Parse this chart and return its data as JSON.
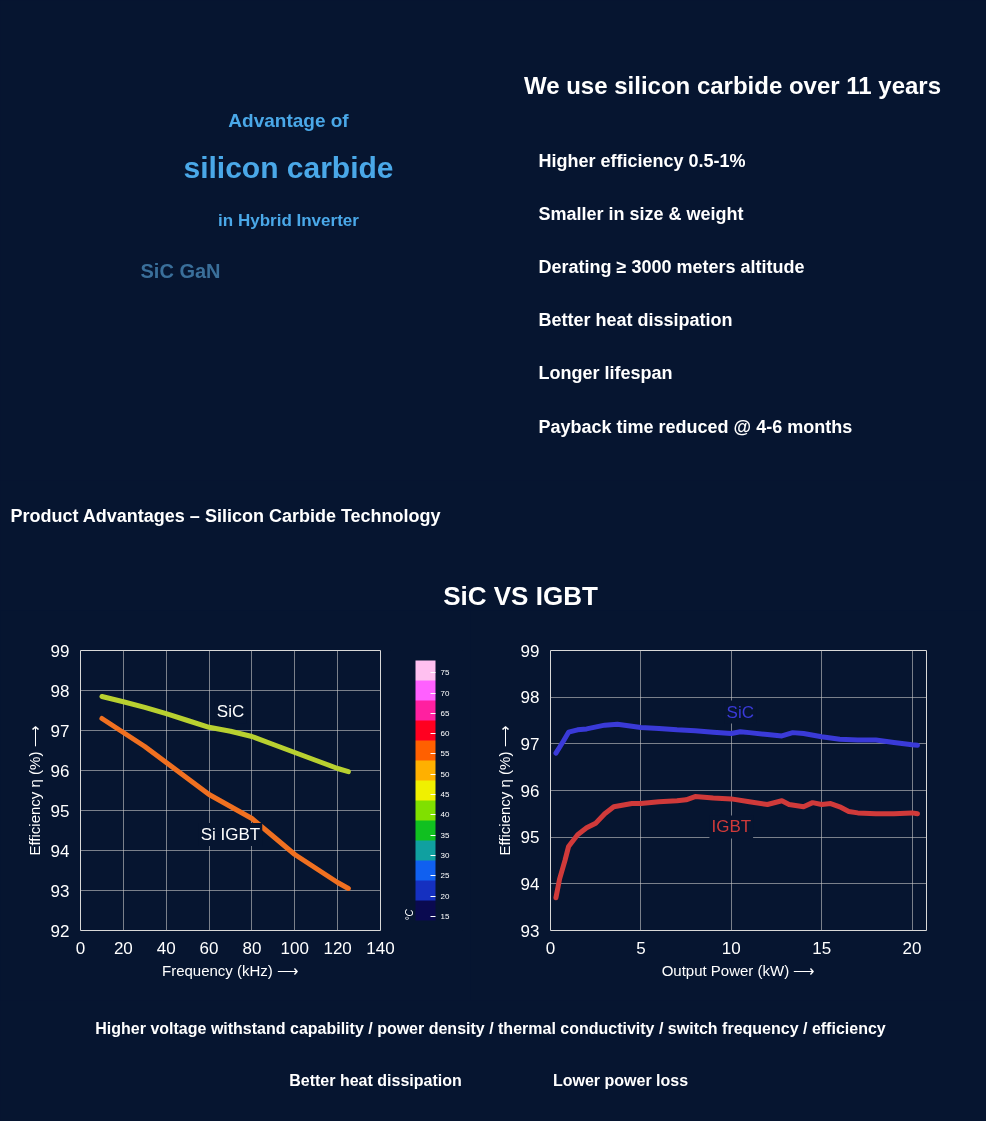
{
  "chart_data": [
    {
      "type": "other",
      "title": "We use silicon carbide over 11 years",
      "annotations": [
        "Advantage of",
        "silicon carbide",
        "in Hybrid Inverter",
        "SiC GaN",
        "Higher efficiency 0.5-1%",
        "Smaller in size & weight",
        "Derating ≥ 3000 meters  altitude",
        "Better heat dissipation",
        "Longer lifespan",
        "Payback time reduced @ 4-6 months"
      ]
    },
    {
      "type": "other",
      "title": "Product Advantages – Silicon Carbide Technology",
      "subtitle": "SiC VS IGBT"
    },
    {
      "type": "line",
      "xlabel": "Frequency (kHz) ⟶",
      "ylabel": "Efficiency η (%) ⟶",
      "clabel": "°C",
      "xlim": [
        0,
        140
      ],
      "ylim": [
        92,
        99
      ],
      "xticks": [
        0,
        20,
        40,
        60,
        80,
        100,
        120,
        140
      ],
      "yticks": [
        92,
        93,
        94,
        95,
        96,
        97,
        98,
        99
      ],
      "clim": [
        14,
        78
      ],
      "cticks": [
        15,
        20,
        25,
        30,
        35,
        40,
        45,
        50,
        55,
        60,
        65,
        70,
        75
      ],
      "grid": true,
      "x": [
        10,
        20,
        30,
        40,
        50,
        60,
        70,
        80,
        90,
        100,
        110,
        120,
        125
      ],
      "series": [
        {
          "name": "SiC",
          "color": "#b8d030",
          "values": [
            97.85,
            97.72,
            97.58,
            97.42,
            97.25,
            97.08,
            96.98,
            96.85,
            96.65,
            96.45,
            96.25,
            96.05,
            95.97
          ]
        },
        {
          "name": "Si IGBT",
          "color": "#f07020",
          "values": [
            97.3,
            96.95,
            96.6,
            96.2,
            95.8,
            95.4,
            95.1,
            94.8,
            94.35,
            93.9,
            93.55,
            93.2,
            93.05
          ]
        }
      ]
    },
    {
      "type": "line",
      "xlabel": "Output Power (kW) ⟶",
      "ylabel": "Efficiency η (%) ⟶",
      "xlim": [
        0,
        20.8
      ],
      "ylim": [
        93,
        99
      ],
      "xticks": [
        0,
        5,
        10,
        15,
        20
      ],
      "yticks": [
        93,
        94,
        95,
        96,
        97,
        98,
        99
      ],
      "grid": true,
      "series": [
        {
          "name": "SiC",
          "color": "#3a3ad8",
          "x": [
            0.3,
            0.7,
            1,
            1.5,
            2,
            3,
            3.7,
            5,
            6,
            7,
            8,
            9,
            10,
            10.5,
            11,
            12,
            12.8,
            13.4,
            14,
            15,
            16,
            17,
            18,
            19,
            20,
            20.3
          ],
          "values": [
            96.8,
            97.05,
            97.25,
            97.3,
            97.32,
            97.4,
            97.42,
            97.35,
            97.33,
            97.3,
            97.28,
            97.25,
            97.22,
            97.26,
            97.24,
            97.2,
            97.17,
            97.24,
            97.22,
            97.15,
            97.1,
            97.08,
            97.08,
            97.03,
            96.98,
            96.97
          ]
        },
        {
          "name": "IGBT",
          "color": "#d03a3a",
          "x": [
            0.3,
            0.5,
            0.8,
            1,
            1.5,
            2,
            2.5,
            3,
            3.5,
            4.5,
            5,
            6,
            7,
            7.5,
            8,
            9,
            10,
            11,
            12,
            12.8,
            13.2,
            14,
            14.5,
            15,
            15.5,
            16,
            16.5,
            17,
            18,
            19,
            20,
            20.3
          ],
          "values": [
            93.7,
            94.1,
            94.5,
            94.8,
            95.05,
            95.2,
            95.3,
            95.5,
            95.65,
            95.72,
            95.72,
            95.76,
            95.78,
            95.8,
            95.87,
            95.84,
            95.82,
            95.76,
            95.7,
            95.78,
            95.7,
            95.65,
            95.74,
            95.7,
            95.72,
            95.65,
            95.55,
            95.52,
            95.5,
            95.5,
            95.52,
            95.5
          ]
        }
      ]
    },
    {
      "type": "other",
      "annotations": [
        "Higher voltage withstand capability / power density / thermal conductivity / switch frequency / efficiency",
        "Better heat dissipation",
        "Lower power loss"
      ]
    }
  ]
}
